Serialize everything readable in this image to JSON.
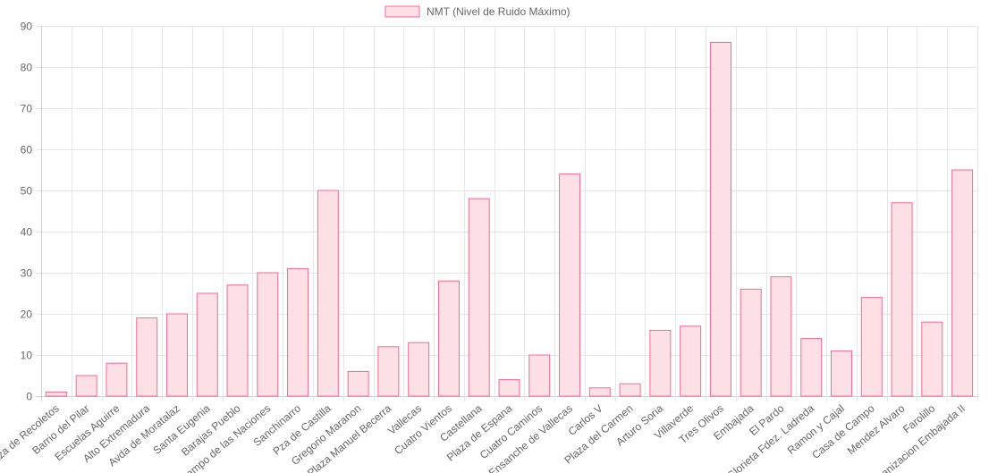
{
  "chart_data": {
    "type": "bar",
    "categories": [
      "Plaza de Recoletos",
      "Barrio del Pilar",
      "Escuelas Aguirre",
      "Alto Extremadura",
      "Avda de Moratalaz",
      "Santa Eugenia",
      "Barajas Pueblo",
      "Campo de las Naciones",
      "Sanchinarro",
      "Pza de Castilla",
      "Gregorio Maranon",
      "Plaza Manuel Becerra",
      "Vallecas",
      "Cuatro Vientos",
      "Castellana",
      "Plaza de Espana",
      "Cuatro Caminos",
      "Ensanche de Vallecas",
      "Carlos V",
      "Plaza del Carmen",
      "Arturo Soria",
      "Villaverde",
      "Tres Olivos",
      "Embajada",
      "El Pardo",
      "Glorieta Fdez. Ladreda",
      "Ramon y Cajal",
      "Casa de Campo",
      "Mendez Alvaro",
      "Farolillo",
      "Urbanizacion Embajada II"
    ],
    "series": [
      {
        "name": "NMT (Nivel de Ruido Máximo)",
        "values": [
          1,
          5,
          8,
          19,
          20,
          25,
          27,
          30,
          31,
          50,
          6,
          12,
          13,
          28,
          48,
          4,
          10,
          54,
          2,
          3,
          16,
          17,
          86,
          26,
          29,
          14,
          11,
          24,
          47,
          18,
          55
        ]
      }
    ],
    "ylim": [
      0,
      90
    ],
    "yticks": [
      0,
      10,
      20,
      30,
      40,
      50,
      60,
      70,
      80,
      90
    ],
    "grid": true,
    "legend_position": "top-center",
    "colors": {
      "bar_fill": "#fde0e6",
      "bar_stroke": "#f06c90",
      "grid": "#e6e6e6",
      "axis": "#cccccc",
      "text": "#666666"
    }
  }
}
